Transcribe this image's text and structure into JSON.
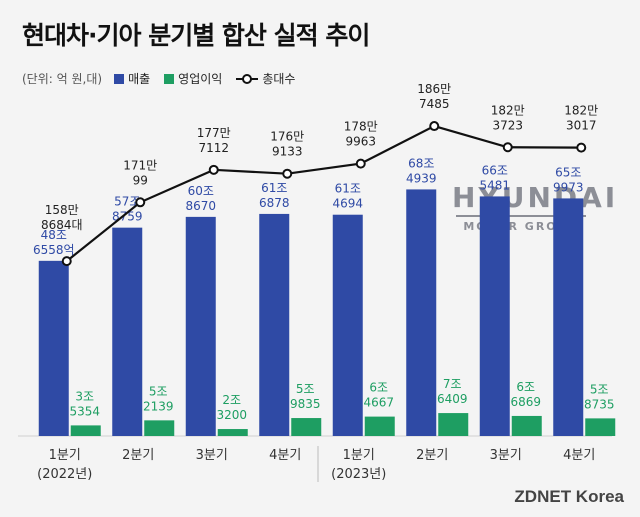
{
  "title": "현대차·기아 분기별 합산 실적 추이",
  "legend": {
    "unit": "(단위: 억 원,대)",
    "items": [
      {
        "label": "매출",
        "color": "#2f4aa5"
      },
      {
        "label": "영업이익",
        "color": "#1e9e62"
      },
      {
        "label": "총대수",
        "color": "#111111"
      }
    ]
  },
  "logo": {
    "main": "HYUNDAI",
    "sub": "MOTOR GROUP"
  },
  "watermark": "ZDNET Korea",
  "chart_data": {
    "type": "bar",
    "categories": [
      "1분기",
      "2분기",
      "3분기",
      "4분기",
      "1분기",
      "2분기",
      "3분기",
      "4분기"
    ],
    "year_labels": [
      {
        "index": 0,
        "label": "(2022년)"
      },
      {
        "index": 4,
        "label": "(2023년)"
      }
    ],
    "series": [
      {
        "name": "매출",
        "color": "#2f4aa5",
        "values": [
          486558,
          578759,
          608670,
          616878,
          614694,
          684939,
          665481,
          659973
        ],
        "labels": [
          [
            "48조",
            "6558억"
          ],
          [
            "57조",
            "8759"
          ],
          [
            "60조",
            "8670"
          ],
          [
            "61조",
            "6878"
          ],
          [
            "61조",
            "4694"
          ],
          [
            "68조",
            "4939"
          ],
          [
            "66조",
            "5481"
          ],
          [
            "65조",
            "9973"
          ]
        ]
      },
      {
        "name": "영업이익",
        "color": "#1e9e62",
        "values": [
          35354,
          52139,
          23200,
          59835,
          64667,
          76409,
          66869,
          58735
        ],
        "labels": [
          [
            "3조",
            "5354"
          ],
          [
            "5조",
            "2139"
          ],
          [
            "2조",
            "3200"
          ],
          [
            "5조",
            "9835"
          ],
          [
            "6조",
            "4667"
          ],
          [
            "7조",
            "6409"
          ],
          [
            "6조",
            "6869"
          ],
          [
            "5조",
            "8735"
          ]
        ]
      },
      {
        "name": "총대수",
        "type": "line",
        "color": "#111111",
        "values": [
          1588684,
          1710099,
          1777112,
          1769133,
          1789963,
          1867485,
          1823723,
          1823017
        ],
        "labels": [
          [
            "158만",
            "8684대"
          ],
          [
            "171만",
            "99"
          ],
          [
            "177만",
            "7112"
          ],
          [
            "176만",
            "9133"
          ],
          [
            "178만",
            "9963"
          ],
          [
            "186만",
            "7485"
          ],
          [
            "182만",
            "3723"
          ],
          [
            "182만",
            "3017"
          ]
        ]
      }
    ]
  }
}
